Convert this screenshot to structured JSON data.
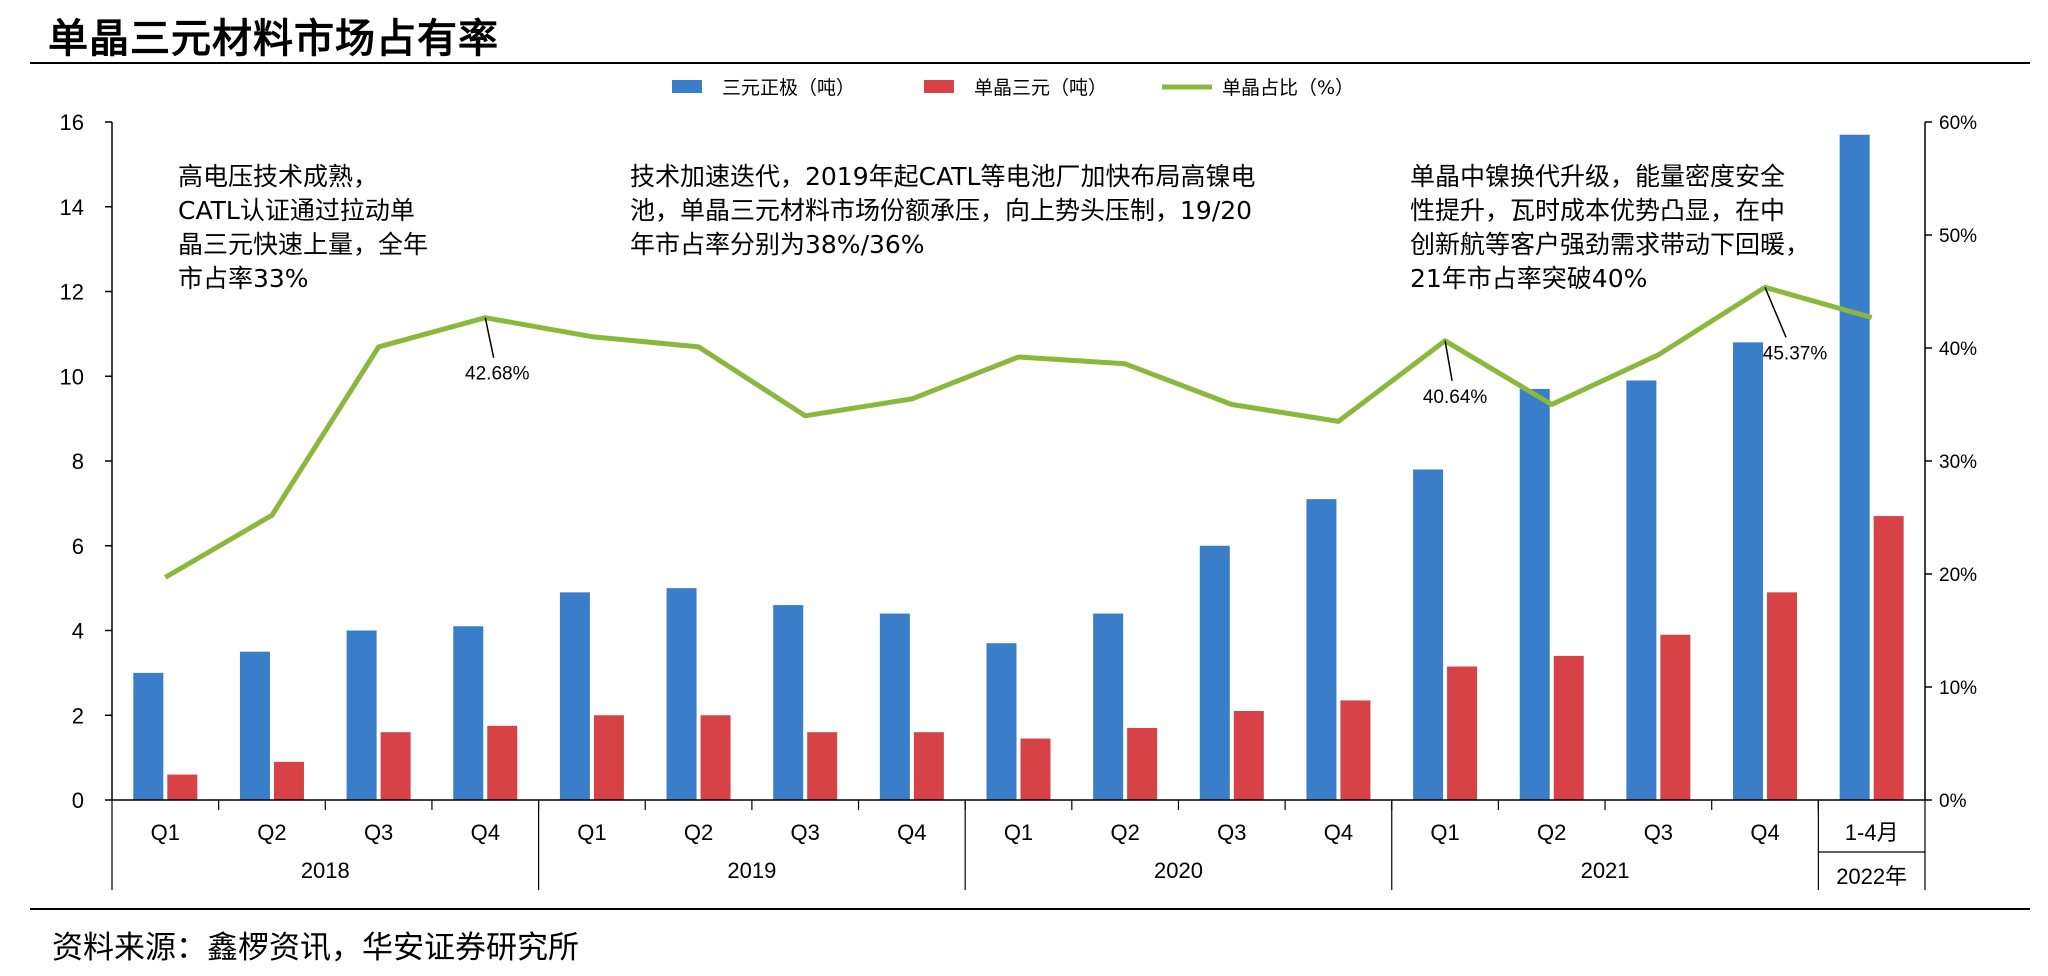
{
  "title": "单晶三元材料市场占有率",
  "source": "资料来源：鑫椤资讯，华安证券研究所",
  "annotations": [
    {
      "id": "a1",
      "text": [
        "高电压技术成熟，",
        "CATL认证通过拉动单",
        "晶三元快速上量，全年",
        "市占率33%"
      ]
    },
    {
      "id": "a2",
      "text": [
        "技术加速迭代，2019年起CATL等电池厂加快布局高镍电",
        "池，单晶三元材料市场份额承压，向上势头压制，19/20",
        "年市占率分别为38%/36%"
      ]
    },
    {
      "id": "a3",
      "text": [
        "单晶中镍换代升级，能量密度安全",
        "性提升，瓦时成本优势凸显，在中",
        "创新航等客户强劲需求带动下回暖，",
        "21年市占率突破40%"
      ]
    }
  ],
  "chart_data": {
    "type": "bar",
    "categories": [
      "Q1",
      "Q2",
      "Q3",
      "Q4",
      "Q1",
      "Q2",
      "Q3",
      "Q4",
      "Q1",
      "Q2",
      "Q3",
      "Q4",
      "Q1",
      "Q2",
      "Q3",
      "Q4",
      "1-4月"
    ],
    "groups": [
      {
        "label": "2018",
        "count": 4
      },
      {
        "label": "2019",
        "count": 4
      },
      {
        "label": "2020",
        "count": 4
      },
      {
        "label": "2021",
        "count": 4
      },
      {
        "label": "2022年",
        "count": 1
      }
    ],
    "series": [
      {
        "name": "三元正极（吨）",
        "type": "bar",
        "axis": "left",
        "color": "#3a7dc9",
        "values": [
          3.0,
          3.5,
          4.0,
          4.1,
          4.9,
          5.0,
          4.6,
          4.4,
          3.7,
          4.4,
          6.0,
          7.1,
          7.8,
          9.7,
          9.9,
          10.8,
          15.7
        ]
      },
      {
        "name": "单晶三元（吨）",
        "type": "bar",
        "axis": "left",
        "color": "#d64246",
        "values": [
          0.6,
          0.9,
          1.6,
          1.75,
          2.0,
          2.0,
          1.6,
          1.6,
          1.45,
          1.7,
          2.1,
          2.35,
          3.15,
          3.4,
          3.9,
          4.9,
          6.7
        ]
      },
      {
        "name": "单晶占比（%）",
        "type": "line",
        "axis": "right",
        "color": "#8ab83c",
        "values": [
          19.7,
          25.2,
          40.1,
          42.68,
          41.0,
          40.1,
          34.0,
          35.5,
          39.2,
          38.6,
          35.0,
          33.5,
          40.64,
          35.0,
          39.4,
          45.37,
          42.7
        ]
      }
    ],
    "point_labels": [
      {
        "index": 3,
        "text": "42.68%"
      },
      {
        "index": 12,
        "text": "40.64%"
      },
      {
        "index": 15,
        "text": "45.37%"
      }
    ],
    "y_left": {
      "min": 0,
      "max": 16,
      "ticks": [
        "0",
        "2",
        "4",
        "6",
        "8",
        "10",
        "12",
        "14",
        "16"
      ]
    },
    "y_right": {
      "min": 0,
      "max": 60,
      "ticks": [
        "0%",
        "10%",
        "20%",
        "30%",
        "40%",
        "50%",
        "60%"
      ]
    },
    "legend_position": "top-center",
    "grid": false
  }
}
